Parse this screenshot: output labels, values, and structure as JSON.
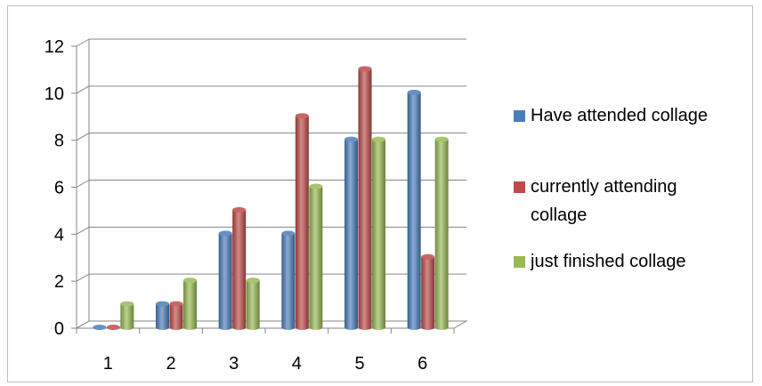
{
  "chart_data": {
    "type": "bar",
    "style": "3d-cylinder",
    "title": "",
    "xlabel": "",
    "ylabel": "",
    "categories": [
      "1",
      "2",
      "3",
      "4",
      "5",
      "6"
    ],
    "ylim": [
      0,
      12
    ],
    "yticks": [
      0,
      2,
      4,
      6,
      8,
      10,
      12
    ],
    "grid": true,
    "legend_position": "right",
    "series": [
      {
        "name": "Have attended collage",
        "color": "#4a7ebb",
        "values": [
          0,
          1,
          4,
          4,
          8,
          10
        ]
      },
      {
        "name": "currently attending collage",
        "color": "#be4b48",
        "values": [
          0,
          1,
          5,
          9,
          11,
          3
        ]
      },
      {
        "name": "just finished collage",
        "color": "#98b954",
        "values": [
          1,
          2,
          2,
          6,
          8,
          8
        ]
      }
    ]
  }
}
